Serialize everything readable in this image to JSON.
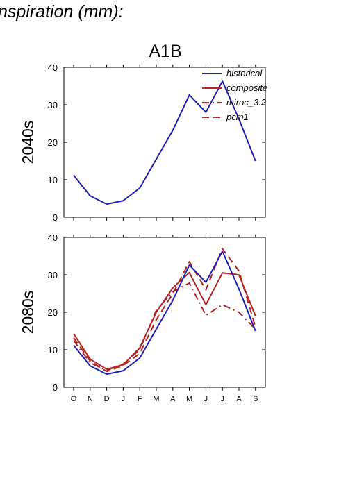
{
  "header_text": "nspiration (mm):",
  "chart_data": {
    "type": "line",
    "title": "A1B",
    "categories": [
      "O",
      "N",
      "D",
      "J",
      "F",
      "M",
      "A",
      "M",
      "J",
      "J",
      "A",
      "S"
    ],
    "ylim": [
      0,
      40
    ],
    "yticks": [
      0,
      10,
      20,
      30,
      40
    ],
    "colors": {
      "historical": "#1f1fb4",
      "model": "#b22222"
    },
    "legend": {
      "placement": "top-right",
      "entries": [
        {
          "name": "historical",
          "color": "#1f1fb4",
          "dash": "solid"
        },
        {
          "name": "composite",
          "color": "#b22222",
          "dash": "solid"
        },
        {
          "name": "miroc_3.2",
          "color": "#b22222",
          "dash": "dashdot"
        },
        {
          "name": "pcm1",
          "color": "#b22222",
          "dash": "dashed"
        }
      ]
    },
    "panels": [
      {
        "label": "2040s",
        "series": [
          {
            "name": "historical",
            "color": "#1f1fb4",
            "dash": "solid",
            "values": [
              11.2,
              5.7,
              3.5,
              4.4,
              7.8,
              15.5,
              23.2,
              32.6,
              28.0,
              36.3,
              26.2,
              15.0
            ]
          }
        ]
      },
      {
        "label": "2080s",
        "series": [
          {
            "name": "historical",
            "color": "#1f1fb4",
            "dash": "solid",
            "values": [
              11.2,
              5.7,
              3.5,
              4.4,
              7.8,
              15.5,
              23.2,
              32.6,
              28.0,
              36.3,
              26.2,
              15.0
            ]
          },
          {
            "name": "composite",
            "color": "#b22222",
            "dash": "solid",
            "values": [
              14.3,
              7.5,
              4.8,
              6.0,
              10.5,
              20.0,
              26.5,
              30.6,
              22.0,
              30.5,
              30.0,
              19.0
            ]
          },
          {
            "name": "miroc_3.2",
            "color": "#b22222",
            "dash": "dashdot",
            "values": [
              12.5,
              6.5,
              4.5,
              6.2,
              10.0,
              20.5,
              25.5,
              27.8,
              19.2,
              22.0,
              20.0,
              15.5
            ]
          },
          {
            "name": "pcm1",
            "color": "#b22222",
            "dash": "dashed",
            "values": [
              13.2,
              7.0,
              4.2,
              5.8,
              9.0,
              18.0,
              25.0,
              33.5,
              26.0,
              37.0,
              31.0,
              16.0
            ]
          }
        ]
      }
    ]
  }
}
